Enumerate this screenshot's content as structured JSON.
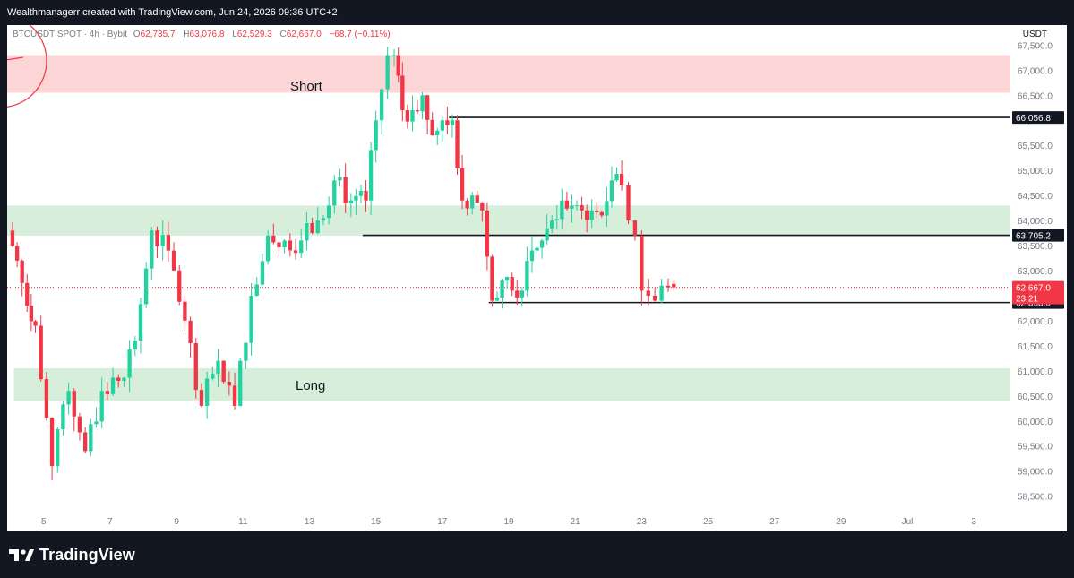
{
  "header": {
    "attribution": "Wealthmanagerr created with TradingView.com, Jun 24, 2026 09:36 UTC+2"
  },
  "symbol_bar": {
    "symbol": "BTCUSDT SPOT · 4h · Bybit",
    "open_label": "O",
    "open_value": "62,735.7",
    "high_label": "H",
    "high_value": "63,076.8",
    "low_label": "L",
    "low_value": "62,529.3",
    "close_label": "C",
    "close_value": "62,667.0",
    "change": "−68.7 (−0.11%)"
  },
  "currency": "USDT",
  "colors": {
    "up": "#22d3a0",
    "down": "#f23645",
    "short_zone": "#fcd5d7",
    "long_zone": "#d7eedb",
    "level_line": "#131722",
    "price_tag": "#f23645"
  },
  "chart_data": {
    "type": "candlestick",
    "timeframe": "4h",
    "ylim": [
      58100,
      67900
    ],
    "y_ticks": [
      58500,
      59000,
      59500,
      60000,
      60500,
      61000,
      61500,
      62000,
      62500,
      63000,
      63500,
      64000,
      64500,
      65000,
      65500,
      66000,
      66500,
      67000,
      67500
    ],
    "y_tick_labels": [
      "58,500.0",
      "59,000.0",
      "59,500.0",
      "60,000.0",
      "60,500.0",
      "61,000.0",
      "61,500.0",
      "62,000.0",
      "62,500.0",
      "63,000.0",
      "63,500.0",
      "64,000.0",
      "64,500.0",
      "65,000.0",
      "65,500.0",
      "66,000.0",
      "66,500.0",
      "67,000.0",
      "67,500.0"
    ],
    "x_ticks": [
      {
        "day": 5,
        "label": "5"
      },
      {
        "day": 7,
        "label": "7"
      },
      {
        "day": 9,
        "label": "9"
      },
      {
        "day": 11,
        "label": "11"
      },
      {
        "day": 13,
        "label": "13"
      },
      {
        "day": 15,
        "label": "15"
      },
      {
        "day": 17,
        "label": "17"
      },
      {
        "day": 19,
        "label": "19"
      },
      {
        "day": 21,
        "label": "21"
      },
      {
        "day": 23,
        "label": "23"
      },
      {
        "day": 25,
        "label": "25"
      },
      {
        "day": 27,
        "label": "27"
      },
      {
        "day": 29,
        "label": "29"
      },
      {
        "day": 31,
        "label": "Jul"
      },
      {
        "day": 33,
        "label": "3"
      }
    ],
    "x_range_days": [
      3.9,
      34.1
    ],
    "anchor_candles": [
      [
        3.92,
        66000,
        63800
      ],
      [
        4.2,
        63600,
        63200
      ],
      [
        4.5,
        62900,
        62300
      ],
      [
        4.75,
        61900,
        61900
      ],
      [
        5.25,
        60900,
        59100
      ],
      [
        5.75,
        60600,
        60600
      ],
      [
        6.25,
        59400,
        59400
      ],
      [
        6.75,
        60600,
        60600
      ],
      [
        7.25,
        60200,
        60800
      ],
      [
        7.75,
        61500,
        61600
      ],
      [
        8.25,
        63300,
        63800
      ],
      [
        8.75,
        63200,
        63400
      ],
      [
        9.25,
        62300,
        62000
      ],
      [
        9.75,
        60600,
        60300
      ],
      [
        10.25,
        60500,
        61200
      ],
      [
        10.75,
        60900,
        60300
      ],
      [
        11.25,
        61600,
        62500
      ],
      [
        11.75,
        63500,
        63700
      ],
      [
        12.25,
        63700,
        63600
      ],
      [
        12.75,
        63400,
        63600
      ],
      [
        13.25,
        64000,
        64000
      ],
      [
        13.75,
        64500,
        64800
      ],
      [
        14.25,
        64600,
        64400
      ],
      [
        14.7,
        63800,
        64400
      ],
      [
        15.0,
        65500,
        66000
      ],
      [
        15.35,
        66300,
        67300
      ],
      [
        15.55,
        67000,
        67300
      ],
      [
        15.8,
        66500,
        66200
      ],
      [
        16.1,
        66600,
        66200
      ],
      [
        16.4,
        66000,
        66500
      ],
      [
        16.7,
        66100,
        65700
      ],
      [
        17.0,
        65900,
        66000
      ],
      [
        17.3,
        65500,
        66000
      ],
      [
        17.6,
        64800,
        64400
      ],
      [
        17.9,
        64400,
        64500
      ],
      [
        18.2,
        64200,
        64200
      ],
      [
        18.5,
        63900,
        62400
      ],
      [
        18.8,
        62900,
        62800
      ],
      [
        19.1,
        62900,
        62600
      ],
      [
        19.4,
        62800,
        62600
      ],
      [
        19.7,
        63100,
        63400
      ],
      [
        20.0,
        63400,
        63600
      ],
      [
        20.3,
        63800,
        64000
      ],
      [
        20.6,
        64000,
        64400
      ],
      [
        20.9,
        64300,
        64300
      ],
      [
        21.2,
        64400,
        64200
      ],
      [
        21.5,
        64300,
        64200
      ],
      [
        21.8,
        63400,
        64100
      ],
      [
        22.1,
        64600,
        64800
      ],
      [
        22.4,
        64900,
        64700
      ],
      [
        22.6,
        64500,
        64000
      ],
      [
        22.8,
        64000,
        63700
      ],
      [
        23.0,
        63000,
        62600
      ],
      [
        23.2,
        62500,
        62500
      ],
      [
        23.4,
        62400,
        62400
      ],
      [
        23.6,
        62500,
        62700
      ],
      [
        23.8,
        62735.7,
        62667.0
      ]
    ],
    "zones": [
      {
        "name": "Short",
        "from": 66550,
        "to": 67300
      },
      {
        "name": "Long",
        "from": 60400,
        "to": 61050
      }
    ],
    "upper_green_zone": {
      "from": 63700,
      "to": 64300
    },
    "levels": [
      {
        "price": 66056.8,
        "label": "66,056.8",
        "start_day": 17.2
      },
      {
        "price": 63705.2,
        "label": "63,705.2",
        "start_day": 14.6
      },
      {
        "price": 62363.0,
        "label": "62,363.0",
        "start_day": 18.4
      }
    ],
    "last_price": {
      "price": 62667.0,
      "label": "62,667.0",
      "countdown": "23:21"
    }
  }
}
